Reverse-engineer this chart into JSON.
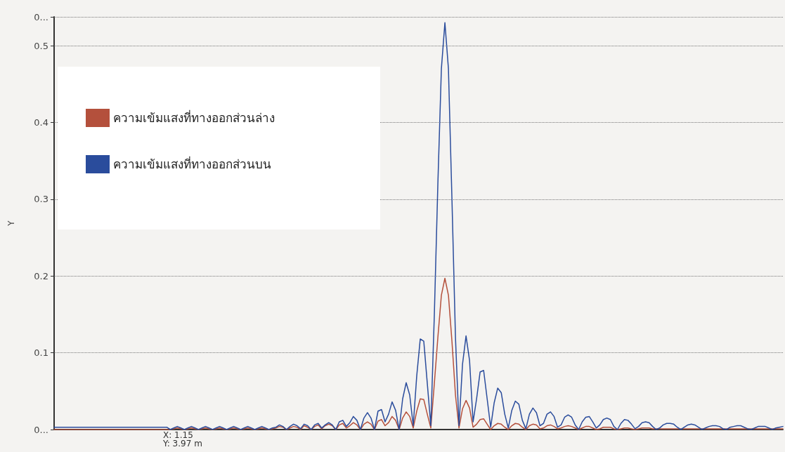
{
  "chart_data": {
    "type": "line",
    "ylabel": "Y",
    "ylim": [
      0,
      0.5375
    ],
    "yticks": [
      {
        "value": 0,
        "label": "0..."
      },
      0.1,
      0.2,
      0.3,
      0.4,
      0.5,
      {
        "value": 0.5375,
        "label": "0..."
      }
    ],
    "grid": "y",
    "legend": "top left",
    "marker": "none",
    "line_style": "solid",
    "annotations": [
      "X: 1.15",
      "Y: 3.97 m"
    ],
    "categories": [
      null,
      null,
      null,
      null,
      null,
      null,
      null,
      null,
      null,
      null,
      null,
      null,
      null,
      null,
      null,
      null,
      null,
      null,
      null,
      null,
      null,
      null,
      null,
      null,
      null,
      null,
      null,
      null,
      null,
      null,
      null,
      null,
      null,
      null,
      null,
      null,
      null,
      null,
      null,
      null,
      null,
      null,
      null,
      null,
      null,
      null,
      null,
      null,
      null,
      null,
      null,
      null,
      null,
      null,
      null,
      null,
      null,
      null,
      null,
      null,
      null,
      null,
      null,
      null,
      null,
      null,
      null,
      null,
      null,
      null,
      null,
      null,
      null,
      null,
      null,
      null,
      null,
      null,
      null,
      null,
      null,
      null,
      null,
      null,
      null,
      null,
      null,
      null,
      null,
      null,
      null,
      null,
      null,
      null,
      null,
      null,
      null,
      null,
      null,
      null,
      null,
      null,
      null,
      null,
      null,
      null,
      null,
      null,
      null,
      null,
      null,
      null,
      null,
      null,
      null,
      null,
      null,
      null,
      null,
      null,
      null,
      null,
      null,
      null,
      null,
      null,
      null,
      null,
      null,
      null,
      null,
      null,
      null,
      null,
      null,
      null,
      null,
      null,
      null,
      null,
      null,
      null,
      null,
      null,
      null,
      null,
      null,
      null,
      null,
      null,
      null,
      null,
      null,
      null,
      null,
      null,
      null,
      null,
      null,
      null,
      null,
      null,
      null,
      null,
      null,
      null,
      null,
      null,
      null,
      null,
      null,
      null,
      null,
      null,
      null,
      null,
      null,
      null,
      null,
      null,
      null,
      null,
      null,
      null,
      null,
      null,
      null,
      null,
      null,
      null,
      null,
      null,
      null,
      null,
      null,
      null,
      null,
      null,
      null,
      null,
      null,
      null,
      null,
      null,
      null,
      null,
      null,
      null
    ],
    "series": [
      {
        "name": "ความเข้มแสงที่ทางออกส่วนล่าง",
        "color": "#b4503c",
        "values": [
          0,
          0,
          0,
          0,
          0,
          0,
          0,
          0,
          0,
          0,
          0,
          0,
          0,
          0,
          0,
          0,
          0,
          0,
          0,
          0,
          0,
          0,
          0,
          0,
          0,
          0,
          0,
          0,
          0,
          0,
          0,
          0,
          0,
          0,
          0.001,
          0.002,
          0.001,
          0,
          0.001,
          0.002,
          0.001,
          0,
          0.001,
          0.002,
          0.001,
          0,
          0.001,
          0.002,
          0.001,
          0,
          0.001,
          0.002,
          0.001,
          0,
          0.001,
          0.002,
          0.001,
          0,
          0.001,
          0.002,
          0.001,
          0,
          0.001,
          0.002,
          0.004,
          0.003,
          0,
          0.002,
          0.004,
          0.003,
          0,
          0.005,
          0.003,
          0,
          0.004,
          0.006,
          0.001,
          0.005,
          0.007,
          0.005,
          0,
          0.006,
          0.008,
          0.002,
          0.005,
          0.009,
          0.006,
          0,
          0.007,
          0.01,
          0.007,
          0,
          0.011,
          0.013,
          0.005,
          0.009,
          0.017,
          0.012,
          0,
          0.015,
          0.023,
          0.017,
          0.002,
          0.024,
          0.04,
          0.039,
          0.02,
          0.002,
          0.06,
          0.12,
          0.175,
          0.197,
          0.175,
          0.115,
          0.045,
          0.002,
          0.027,
          0.038,
          0.028,
          0.003,
          0.007,
          0.013,
          0.014,
          0.007,
          0,
          0.005,
          0.008,
          0.007,
          0.003,
          0,
          0.005,
          0.008,
          0.007,
          0.003,
          0,
          0.005,
          0.007,
          0.006,
          0.001,
          0.002,
          0.005,
          0.006,
          0.004,
          0.001,
          0.002,
          0.004,
          0.005,
          0.004,
          0.002,
          0,
          0.002,
          0.004,
          0.004,
          0.002,
          0,
          0.001,
          0.003,
          0.003,
          0.003,
          0.001,
          0,
          0.001,
          0.002,
          0.002,
          0.001,
          0,
          0.001,
          0.002,
          0.002,
          0.002,
          0.001,
          0.001,
          0.001,
          0.001,
          0.001,
          0.001,
          0.001,
          0.001,
          0.001,
          0.001,
          0.001,
          0.001,
          0.001,
          0.001,
          0.001,
          0.001,
          0.001,
          0.001,
          0.001,
          0.001,
          0.001,
          0.001,
          0.001,
          0.001,
          0.001,
          0.001,
          0.001,
          0.001,
          0.001,
          0.001,
          0.001,
          0.001,
          0.001,
          0.001,
          0.001,
          0.001,
          0.001,
          0.001
        ]
      },
      {
        "name": "ความเข้มแสงที่ทางออกส่วนบน",
        "color": "#2a4c9c",
        "values": [
          0.003,
          0.003,
          0.003,
          0.003,
          0.003,
          0.003,
          0.003,
          0.003,
          0.003,
          0.003,
          0.003,
          0.003,
          0.003,
          0.003,
          0.003,
          0.003,
          0.003,
          0.003,
          0.003,
          0.003,
          0.003,
          0.003,
          0.003,
          0.003,
          0.003,
          0.003,
          0.003,
          0.003,
          0.003,
          0.003,
          0.003,
          0.003,
          0.003,
          0,
          0.002,
          0.004,
          0.002,
          0,
          0.002,
          0.004,
          0.002,
          0,
          0.002,
          0.004,
          0.002,
          0,
          0.002,
          0.004,
          0.002,
          0,
          0.002,
          0.004,
          0.002,
          0,
          0.002,
          0.004,
          0.002,
          0,
          0.002,
          0.004,
          0.002,
          0,
          0.002,
          0.003,
          0.006,
          0.004,
          0,
          0.004,
          0.007,
          0.005,
          0.001,
          0.007,
          0.005,
          0,
          0.006,
          0.008,
          0.002,
          0.006,
          0.009,
          0.006,
          0,
          0.01,
          0.012,
          0.004,
          0.009,
          0.017,
          0.012,
          0,
          0.015,
          0.022,
          0.015,
          0,
          0.024,
          0.026,
          0.01,
          0.02,
          0.036,
          0.025,
          0,
          0.04,
          0.061,
          0.045,
          0.005,
          0.07,
          0.118,
          0.115,
          0.06,
          0.005,
          0.15,
          0.32,
          0.47,
          0.53,
          0.47,
          0.3,
          0.12,
          0.005,
          0.085,
          0.122,
          0.09,
          0.01,
          0.04,
          0.075,
          0.077,
          0.04,
          0.003,
          0.035,
          0.054,
          0.048,
          0.02,
          0.002,
          0.025,
          0.037,
          0.033,
          0.012,
          0.001,
          0.02,
          0.028,
          0.022,
          0.005,
          0.008,
          0.02,
          0.023,
          0.017,
          0.003,
          0.006,
          0.016,
          0.019,
          0.016,
          0.006,
          0,
          0.01,
          0.016,
          0.017,
          0.01,
          0.002,
          0.006,
          0.013,
          0.015,
          0.013,
          0.004,
          0,
          0.008,
          0.013,
          0.012,
          0.007,
          0.001,
          0.004,
          0.009,
          0.01,
          0.009,
          0.004,
          0,
          0.002,
          0.006,
          0.008,
          0.008,
          0.007,
          0.003,
          0,
          0.003,
          0.006,
          0.007,
          0.006,
          0.003,
          0,
          0.002,
          0.004,
          0.005,
          0.005,
          0.004,
          0.001,
          0,
          0.003,
          0.004,
          0.005,
          0.005,
          0.003,
          0.001,
          0,
          0.002,
          0.004,
          0.004,
          0.004,
          0.002,
          0,
          0.002,
          0.003,
          0.004
        ]
      }
    ]
  }
}
